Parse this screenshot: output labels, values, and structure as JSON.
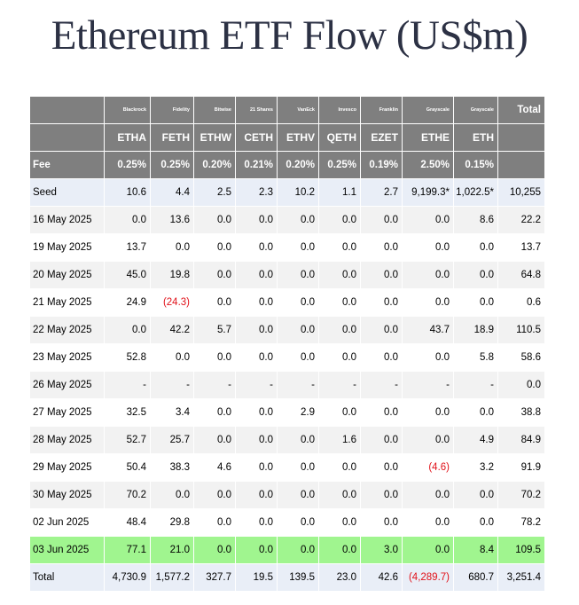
{
  "title": "Ethereum ETF Flow (US$m)",
  "colors": {
    "header_bg": "#7f7f7f",
    "highlight": "#a0f58f",
    "negative": "#e1121a",
    "shade": "#f2f2f2",
    "seed_bg": "#e9eef7"
  },
  "chart_data": {
    "type": "table",
    "title": "Ethereum ETF Flow (US$m)",
    "issuers": [
      "Blackrock",
      "Fidelity",
      "Bitwise",
      "21 Shares",
      "VanEck",
      "Invesco",
      "Franklin",
      "Grayscale",
      "Grayscale"
    ],
    "tickers": [
      "ETHA",
      "FETH",
      "ETHW",
      "CETH",
      "ETHV",
      "QETH",
      "EZET",
      "ETHE",
      "ETH"
    ],
    "total_header": "Total",
    "fee_label": "Fee",
    "fees": [
      "0.25%",
      "0.25%",
      "0.20%",
      "0.21%",
      "0.20%",
      "0.25%",
      "0.19%",
      "2.50%",
      "0.15%"
    ],
    "rows": [
      {
        "label": "Seed",
        "values": [
          "10.6",
          "4.4",
          "2.5",
          "2.3",
          "10.2",
          "1.1",
          "2.7",
          "9,199.3*",
          "1,022.5*"
        ],
        "total": "10,255"
      },
      {
        "label": "16 May 2025",
        "values": [
          "0.0",
          "13.6",
          "0.0",
          "0.0",
          "0.0",
          "0.0",
          "0.0",
          "0.0",
          "8.6"
        ],
        "total": "22.2"
      },
      {
        "label": "19 May 2025",
        "values": [
          "13.7",
          "0.0",
          "0.0",
          "0.0",
          "0.0",
          "0.0",
          "0.0",
          "0.0",
          "0.0"
        ],
        "total": "13.7"
      },
      {
        "label": "20 May 2025",
        "values": [
          "45.0",
          "19.8",
          "0.0",
          "0.0",
          "0.0",
          "0.0",
          "0.0",
          "0.0",
          "0.0"
        ],
        "total": "64.8"
      },
      {
        "label": "21 May 2025",
        "values": [
          "24.9",
          "(24.3)",
          "0.0",
          "0.0",
          "0.0",
          "0.0",
          "0.0",
          "0.0",
          "0.0"
        ],
        "total": "0.6"
      },
      {
        "label": "22 May 2025",
        "values": [
          "0.0",
          "42.2",
          "5.7",
          "0.0",
          "0.0",
          "0.0",
          "0.0",
          "43.7",
          "18.9"
        ],
        "total": "110.5"
      },
      {
        "label": "23 May 2025",
        "values": [
          "52.8",
          "0.0",
          "0.0",
          "0.0",
          "0.0",
          "0.0",
          "0.0",
          "0.0",
          "5.8"
        ],
        "total": "58.6"
      },
      {
        "label": "26 May 2025",
        "values": [
          "-",
          "-",
          "-",
          "-",
          "-",
          "-",
          "-",
          "-",
          "-"
        ],
        "total": "0.0"
      },
      {
        "label": "27 May 2025",
        "values": [
          "32.5",
          "3.4",
          "0.0",
          "0.0",
          "2.9",
          "0.0",
          "0.0",
          "0.0",
          "0.0"
        ],
        "total": "38.8"
      },
      {
        "label": "28 May 2025",
        "values": [
          "52.7",
          "25.7",
          "0.0",
          "0.0",
          "0.0",
          "1.6",
          "0.0",
          "0.0",
          "4.9"
        ],
        "total": "84.9"
      },
      {
        "label": "29 May 2025",
        "values": [
          "50.4",
          "38.3",
          "4.6",
          "0.0",
          "0.0",
          "0.0",
          "0.0",
          "(4.6)",
          "3.2"
        ],
        "total": "91.9"
      },
      {
        "label": "30 May 2025",
        "values": [
          "70.2",
          "0.0",
          "0.0",
          "0.0",
          "0.0",
          "0.0",
          "0.0",
          "0.0",
          "0.0"
        ],
        "total": "70.2"
      },
      {
        "label": "02 Jun 2025",
        "values": [
          "48.4",
          "29.8",
          "0.0",
          "0.0",
          "0.0",
          "0.0",
          "0.0",
          "0.0",
          "0.0"
        ],
        "total": "78.2"
      },
      {
        "label": "03 Jun 2025",
        "values": [
          "77.1",
          "21.0",
          "0.0",
          "0.0",
          "0.0",
          "0.0",
          "3.0",
          "0.0",
          "8.4"
        ],
        "total": "109.5"
      }
    ],
    "total_row": {
      "label": "Total",
      "values": [
        "4,730.9",
        "1,577.2",
        "327.7",
        "19.5",
        "139.5",
        "23.0",
        "42.6",
        "(4,289.7)",
        "680.7"
      ],
      "total": "3,251.4"
    }
  }
}
